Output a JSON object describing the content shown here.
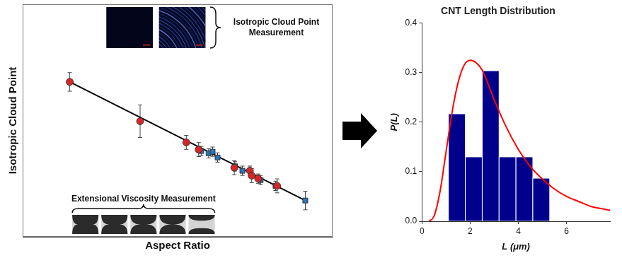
{
  "chart_data": [
    {
      "type": "scatter",
      "x_label": "Aspect Ratio",
      "y_label": "Isotropic Cloud Point",
      "xlim": [
        0,
        100
      ],
      "ylim": [
        0,
        100
      ],
      "tick_labels": false,
      "grid": false,
      "annotations": [
        "Isotropic Cloud Point Measurement",
        "Extensional Viscosity Measurement"
      ],
      "series": [
        {
          "type": "line",
          "color": "#000000",
          "line_style": "solid",
          "x": [
            15.2,
            91.2
          ],
          "values": [
            66.6,
            15.6
          ]
        },
        {
          "color": "#d62728",
          "marker": "circle",
          "x": [
            15.2,
            37.9,
            52.8,
            56.8,
            68.3,
            73.3,
            73.9,
            76.0,
            82.1
          ],
          "values": [
            66.6,
            49.7,
            40.6,
            37.5,
            29.7,
            28.4,
            26.3,
            25.0,
            21.9
          ],
          "errors": [
            4,
            7,
            3,
            3,
            3,
            2,
            3,
            2,
            3
          ]
        },
        {
          "color": "#2e75b6",
          "marker": "square",
          "x": [
            57.6,
            60.0,
            61.3,
            62.9,
            68.5,
            70.9,
            76.8,
            81.6,
            91.2
          ],
          "values": [
            36.9,
            35.9,
            36.6,
            34.1,
            30.3,
            28.4,
            24.4,
            21.9,
            15.6
          ],
          "errors": [
            2,
            2,
            2,
            2,
            2,
            2,
            2,
            2,
            4
          ]
        }
      ]
    },
    {
      "type": "histogram",
      "title": "CNT Length Distribution",
      "x_label": "L (μm)",
      "y_label": "P(L)",
      "bins": [
        1.1,
        1.8,
        2.5,
        3.2,
        3.9,
        4.6,
        5.3
      ],
      "values": [
        0.217,
        0.13,
        0.304,
        0.13,
        0.13,
        0.087
      ],
      "color": "#00008b",
      "xlim": [
        0,
        7.8
      ],
      "ylim": [
        0,
        0.4
      ],
      "xticks": [
        0,
        2,
        4,
        6
      ],
      "yticks": [
        {
          "value": 0,
          "label": "0.0"
        },
        {
          "value": 0.1,
          "label": "0.1"
        },
        {
          "value": 0.2,
          "label": "0.2"
        },
        {
          "value": 0.3,
          "label": "0.3"
        },
        {
          "value": 0.4,
          "label": "0.4"
        }
      ],
      "grid": false,
      "series": [
        {
          "type": "line",
          "color": "#ff0000",
          "line_style": "solid",
          "x": [
            0.3,
            0.5,
            0.75,
            1,
            1.25,
            1.5,
            1.75,
            2,
            2.25,
            2.5,
            3,
            3.5,
            4,
            4.5,
            5,
            5.5,
            6,
            6.5,
            7,
            7.5,
            7.8
          ],
          "values": [
            0,
            0.01,
            0.06,
            0.14,
            0.22,
            0.28,
            0.315,
            0.325,
            0.32,
            0.305,
            0.245,
            0.19,
            0.145,
            0.11,
            0.085,
            0.065,
            0.05,
            0.04,
            0.03,
            0.025,
            0.022
          ]
        }
      ]
    }
  ]
}
